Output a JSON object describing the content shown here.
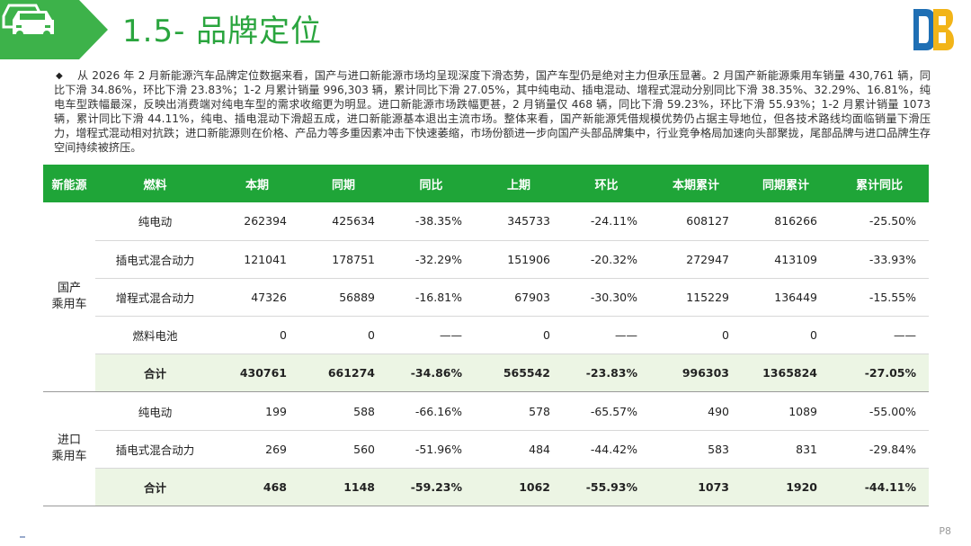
{
  "header": {
    "title": "1.5- 品牌定位",
    "logo_letters": "DB",
    "colors": {
      "accent": "#2aa53e",
      "band": "#3db24a",
      "total_row_bg": "#ecf5e4"
    }
  },
  "summary": {
    "bullet": "◆",
    "text": "从 2026 年 2 月新能源汽车品牌定位数据来看，国产与进口新能源市场均呈现深度下滑态势，国产车型仍是绝对主力但承压显著。2 月国产新能源乘用车销量 430,761 辆，同比下滑 34.86%，环比下滑 23.83%；1-2 月累计销量 996,303 辆，累计同比下滑 27.05%，其中纯电动、插电混动、增程式混动分别同比下滑 38.35%、32.29%、16.81%，纯电车型跌幅最深，反映出消费端对纯电车型的需求收缩更为明显。进口新能源市场跌幅更甚，2 月销量仅 468 辆，同比下滑 59.23%，环比下滑 55.93%；1-2 月累计销量 1073 辆，累计同比下滑 44.11%，纯电、插电混动下滑超五成，进口新能源基本退出主流市场。整体来看，国产新能源凭借规模优势仍占据主导地位，但各技术路线均面临销量下滑压力，增程式混动相对抗跌；进口新能源则在价格、产品力等多重因素冲击下快速萎缩，市场份额进一步向国产头部品牌集中，行业竞争格局加速向头部聚拢，尾部品牌与进口品牌生存空间持续被挤压。"
  },
  "table": {
    "columns": [
      "新能源",
      "燃料",
      "本期",
      "同期",
      "同比",
      "上期",
      "环比",
      "本期累计",
      "同期累计",
      "累计同比"
    ],
    "groups": [
      {
        "name_line1": "国产",
        "name_line2": "乘用车",
        "rows": [
          {
            "fuel": "纯电动",
            "cur": "262394",
            "yoy_base": "425634",
            "yoy": "-38.35%",
            "prev": "345733",
            "mom": "-24.11%",
            "cum": "608127",
            "cum_base": "816266",
            "cum_yoy": "-25.50%"
          },
          {
            "fuel": "插电式混合动力",
            "cur": "121041",
            "yoy_base": "178751",
            "yoy": "-32.29%",
            "prev": "151906",
            "mom": "-20.32%",
            "cum": "272947",
            "cum_base": "413109",
            "cum_yoy": "-33.93%"
          },
          {
            "fuel": "增程式混合动力",
            "cur": "47326",
            "yoy_base": "56889",
            "yoy": "-16.81%",
            "prev": "67903",
            "mom": "-30.30%",
            "cum": "115229",
            "cum_base": "136449",
            "cum_yoy": "-15.55%"
          },
          {
            "fuel": "燃料电池",
            "cur": "0",
            "yoy_base": "0",
            "yoy": "——",
            "prev": "0",
            "mom": "——",
            "cum": "0",
            "cum_base": "0",
            "cum_yoy": "——"
          }
        ],
        "total": {
          "fuel": "合计",
          "cur": "430761",
          "yoy_base": "661274",
          "yoy": "-34.86%",
          "prev": "565542",
          "mom": "-23.83%",
          "cum": "996303",
          "cum_base": "1365824",
          "cum_yoy": "-27.05%"
        }
      },
      {
        "name_line1": "进口",
        "name_line2": "乘用车",
        "rows": [
          {
            "fuel": "纯电动",
            "cur": "199",
            "yoy_base": "588",
            "yoy": "-66.16%",
            "prev": "578",
            "mom": "-65.57%",
            "cum": "490",
            "cum_base": "1089",
            "cum_yoy": "-55.00%"
          },
          {
            "fuel": "插电式混合动力",
            "cur": "269",
            "yoy_base": "560",
            "yoy": "-51.96%",
            "prev": "484",
            "mom": "-44.42%",
            "cum": "583",
            "cum_base": "831",
            "cum_yoy": "-29.84%"
          }
        ],
        "total": {
          "fuel": "合计",
          "cur": "468",
          "yoy_base": "1148",
          "yoy": "-59.23%",
          "prev": "1062",
          "mom": "-55.93%",
          "cum": "1073",
          "cum_base": "1920",
          "cum_yoy": "-44.11%"
        }
      }
    ]
  },
  "footer": {
    "page": "P8"
  }
}
